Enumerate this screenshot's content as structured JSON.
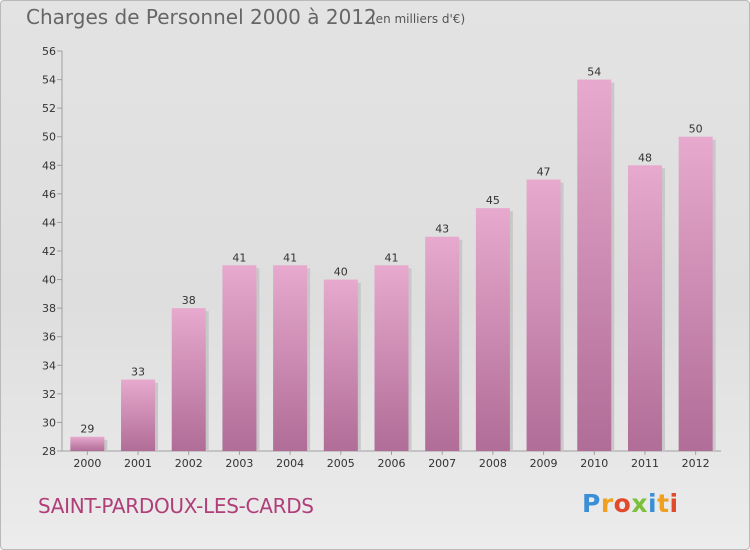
{
  "header": {
    "title": "Charges de Personnel 2000 à 2012",
    "subtitle": "(en milliers d'€)"
  },
  "footer": {
    "commune": "SAINT-PARDOUX-LES-CARDS",
    "logo_letters": [
      "P",
      "r",
      "o",
      "x",
      "i",
      "t",
      "i"
    ]
  },
  "colors": {
    "bar_top": "#e7a9cd",
    "bar_bottom": "#b06d97",
    "title": "#666666",
    "commune": "#b03e78"
  },
  "chart_data": {
    "type": "bar",
    "title": "Charges de Personnel 2000 à 2012",
    "subtitle": "(en milliers d'€)",
    "xlabel": "",
    "ylabel": "",
    "categories": [
      "2000",
      "2001",
      "2002",
      "2003",
      "2004",
      "2005",
      "2006",
      "2007",
      "2008",
      "2009",
      "2010",
      "2011",
      "2012"
    ],
    "values": [
      29,
      33,
      38,
      41,
      41,
      40,
      41,
      43,
      45,
      47,
      54,
      48,
      50
    ],
    "data_labels": [
      "29",
      "33",
      "38",
      "41",
      "41",
      "40",
      "41",
      "43",
      "45",
      "47",
      "54",
      "48",
      "50"
    ],
    "ylim": [
      28,
      56
    ],
    "yticks": [
      28,
      30,
      32,
      34,
      36,
      38,
      40,
      42,
      44,
      46,
      48,
      50,
      52,
      54,
      56
    ],
    "grid": false,
    "legend": "none"
  }
}
